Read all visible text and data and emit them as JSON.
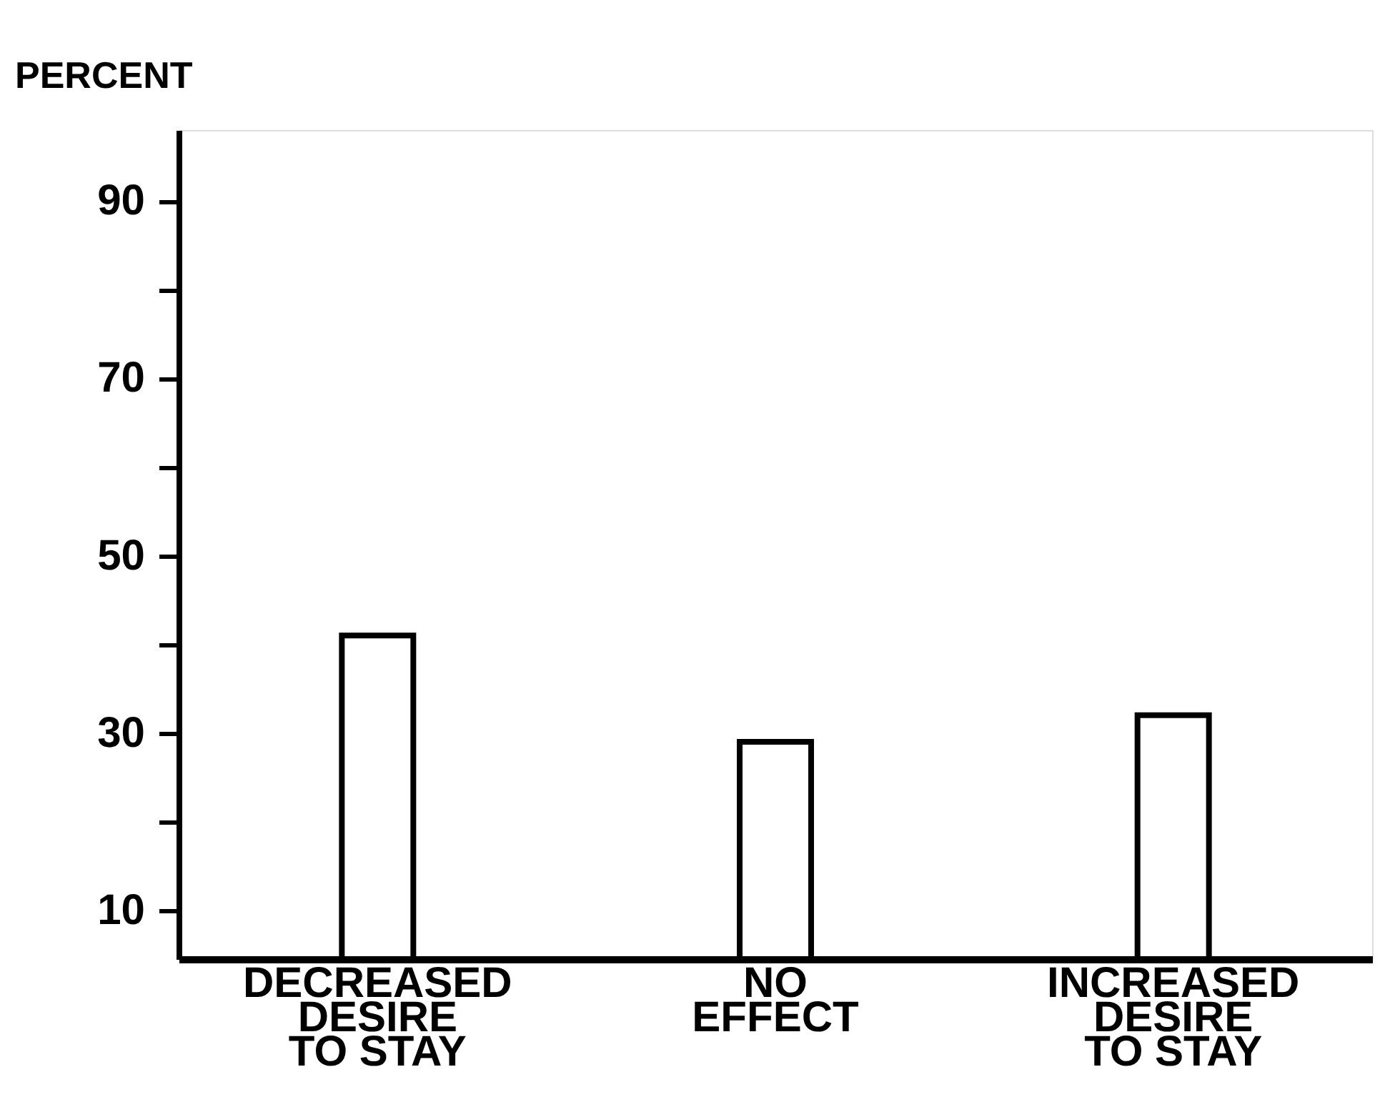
{
  "chart_data": {
    "type": "bar",
    "ylabel": "PERCENT",
    "categories": [
      "DECREASED\nDESIRE\nTO STAY",
      "NO\nEFFECT",
      "INCREASED\nDESIRE\nTO STAY"
    ],
    "values": [
      41,
      29,
      32
    ],
    "color": "#ffffff",
    "ylim": [
      4.5,
      98
    ],
    "yticks": [
      {
        "value": 10,
        "label": "10"
      },
      {
        "value": 20,
        "label": null
      },
      {
        "value": 30,
        "label": "30"
      },
      {
        "value": 40,
        "label": null
      },
      {
        "value": 50,
        "label": "50"
      },
      {
        "value": 60,
        "label": null
      },
      {
        "value": 70,
        "label": "70"
      },
      {
        "value": 80,
        "label": null
      },
      {
        "value": 90,
        "label": "90"
      }
    ],
    "grid": false
  }
}
